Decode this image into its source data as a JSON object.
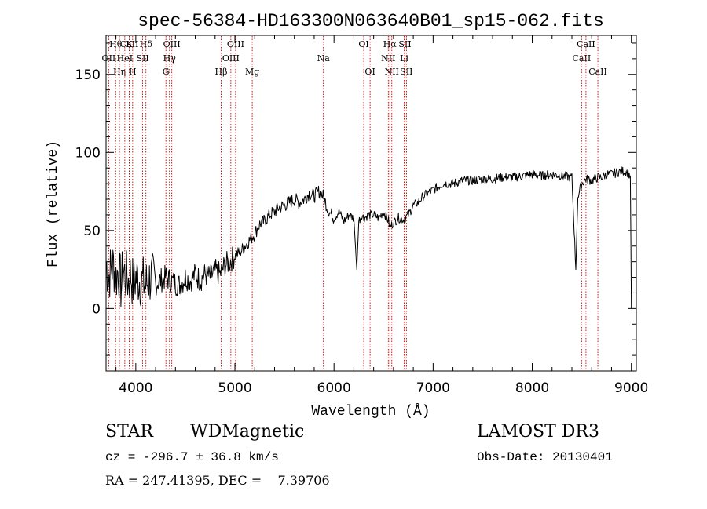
{
  "chart_data": {
    "type": "line",
    "title": "spec-56384-HD163300N063640B01_sp15-062.fits",
    "xlabel": "Wavelength (Å)",
    "ylabel": "Flux (relative)",
    "xlim": [
      3700,
      9050
    ],
    "ylim": [
      -40,
      175
    ],
    "xticks": [
      4000,
      5000,
      6000,
      7000,
      8000,
      9000
    ],
    "yticks": [
      0,
      50,
      100,
      150
    ],
    "grid": false,
    "line_color": "#000000",
    "marker_color": "#cc0000",
    "series": [
      {
        "x": [
          3700,
          3725,
          3750,
          3775,
          3800,
          3825,
          3850,
          3875,
          3900,
          3925,
          3950,
          3975,
          4000,
          4050,
          4100,
          4150,
          4200,
          4250,
          4300,
          4350,
          4400,
          4450,
          4500,
          4550,
          4600,
          4650,
          4700,
          4750,
          4800,
          4850,
          4900,
          4950,
          5000,
          5050,
          5100,
          5150,
          5200,
          5250,
          5300,
          5350,
          5400,
          5450,
          5500,
          5550,
          5600,
          5650,
          5700,
          5750,
          5800,
          5850,
          5890,
          5950,
          6000,
          6050,
          6100,
          6150,
          6200,
          6230,
          6250,
          6280,
          6300,
          6350,
          6400,
          6450,
          6500,
          6550,
          6563,
          6600,
          6650,
          6700,
          6750,
          6800,
          6850,
          6900,
          6950,
          7000,
          7050,
          7100,
          7200,
          7300,
          7400,
          7500,
          7600,
          7700,
          7800,
          7900,
          8000,
          8100,
          8200,
          8300,
          8400,
          8440,
          8460,
          8500,
          8542,
          8600,
          8662,
          8700,
          8750,
          8800,
          8850,
          8900,
          8950,
          8990,
          9000
        ],
        "y": [
          30,
          20,
          25,
          28,
          20,
          25,
          15,
          25,
          20,
          18,
          22,
          15,
          20,
          18,
          15,
          20,
          16,
          18,
          20,
          18,
          16,
          15,
          20,
          18,
          22,
          18,
          22,
          20,
          24,
          22,
          28,
          30,
          34,
          36,
          40,
          44,
          48,
          54,
          56,
          60,
          62,
          65,
          66,
          68,
          70,
          68,
          70,
          74,
          72,
          75,
          72,
          62,
          58,
          62,
          56,
          60,
          58,
          25,
          56,
          60,
          58,
          60,
          60,
          58,
          62,
          56,
          52,
          55,
          58,
          57,
          60,
          66,
          68,
          72,
          74,
          76,
          78,
          80,
          80,
          82,
          82,
          83,
          83,
          84,
          84,
          85,
          86,
          85,
          86,
          85,
          84,
          25,
          72,
          80,
          83,
          82,
          84,
          84,
          86,
          86,
          87,
          88,
          88,
          85,
          0
        ]
      }
    ],
    "line_markers": [
      {
        "label": "OII",
        "x": 3727,
        "row": 2
      },
      {
        "label": "CaII",
        "x": 3934,
        "row": 1
      },
      {
        "label": "Hθ",
        "x": 3797,
        "row": 1
      },
      {
        "label": "Hη",
        "x": 3835,
        "row": 3
      },
      {
        "label": "K",
        "x": 3934,
        "row": 1
      },
      {
        "label": "HeI",
        "x": 3889,
        "row": 2
      },
      {
        "label": "H",
        "x": 3968,
        "row": 3
      },
      {
        "label": "SII",
        "x": 4069,
        "row": 2
      },
      {
        "label": "Hδ",
        "x": 4102,
        "row": 1
      },
      {
        "label": "OIII",
        "x": 4363,
        "row": 1
      },
      {
        "label": "Hγ",
        "x": 4340,
        "row": 2
      },
      {
        "label": "G",
        "x": 4304,
        "row": 3
      },
      {
        "label": "Hβ",
        "x": 4861,
        "row": 3
      },
      {
        "label": "OIII",
        "x": 4959,
        "row": 2
      },
      {
        "label": "OIII",
        "x": 5007,
        "row": 1
      },
      {
        "label": "Mg",
        "x": 5175,
        "row": 3
      },
      {
        "label": "Na",
        "x": 5893,
        "row": 2
      },
      {
        "label": "OI",
        "x": 6300,
        "row": 1
      },
      {
        "label": "OI",
        "x": 6364,
        "row": 3
      },
      {
        "label": "Hα",
        "x": 6563,
        "row": 1
      },
      {
        "label": "NII",
        "x": 6548,
        "row": 2
      },
      {
        "label": "NII",
        "x": 6583,
        "row": 3
      },
      {
        "label": "SII",
        "x": 6716,
        "row": 1
      },
      {
        "label": "Li",
        "x": 6708,
        "row": 2
      },
      {
        "label": "SII",
        "x": 6731,
        "row": 3
      },
      {
        "label": "CaII",
        "x": 8498,
        "row": 2
      },
      {
        "label": "CaII",
        "x": 8542,
        "row": 1
      },
      {
        "label": "CaII",
        "x": 8662,
        "row": 3
      }
    ]
  },
  "info": {
    "class": "STAR",
    "subclass": "WDMagnetic",
    "survey": "LAMOST DR3",
    "cz": "cz = -296.7 ± 36.8 km/s",
    "obs_date": "Obs-Date: 20130401",
    "coords": "RA = 247.41395, DEC =    7.39706"
  }
}
